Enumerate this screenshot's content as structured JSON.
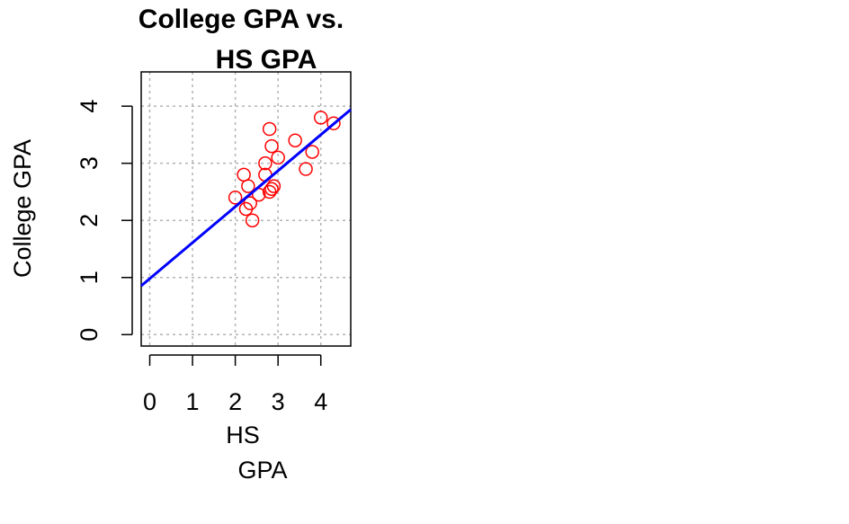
{
  "chart_data": {
    "type": "scatter",
    "title": [
      "College GPA vs.",
      "HS GPA"
    ],
    "xlabel": [
      "HS",
      "GPA"
    ],
    "ylabel": "College GPA",
    "xlim": [
      -0.2,
      4.7
    ],
    "ylim": [
      -0.2,
      4.6
    ],
    "xticks": [
      "0",
      "1",
      "2",
      "3",
      "4"
    ],
    "yticks": [
      "0",
      "1",
      "2",
      "3",
      "4"
    ],
    "grid": true,
    "points": {
      "color": "#ff0000",
      "x": [
        2.0,
        2.2,
        2.25,
        2.3,
        2.35,
        2.4,
        2.55,
        2.7,
        2.7,
        2.8,
        2.8,
        2.85,
        2.85,
        2.9,
        3.0,
        3.4,
        3.65,
        3.8,
        4.0,
        4.3
      ],
      "y": [
        2.4,
        2.8,
        2.2,
        2.6,
        2.3,
        2.0,
        2.45,
        2.8,
        3.0,
        2.5,
        3.6,
        3.3,
        2.55,
        2.6,
        3.1,
        3.4,
        2.9,
        3.2,
        3.8,
        3.7
      ]
    },
    "regression_line": {
      "color": "#0000ff",
      "intercept": 0.98,
      "slope": 0.63
    }
  }
}
